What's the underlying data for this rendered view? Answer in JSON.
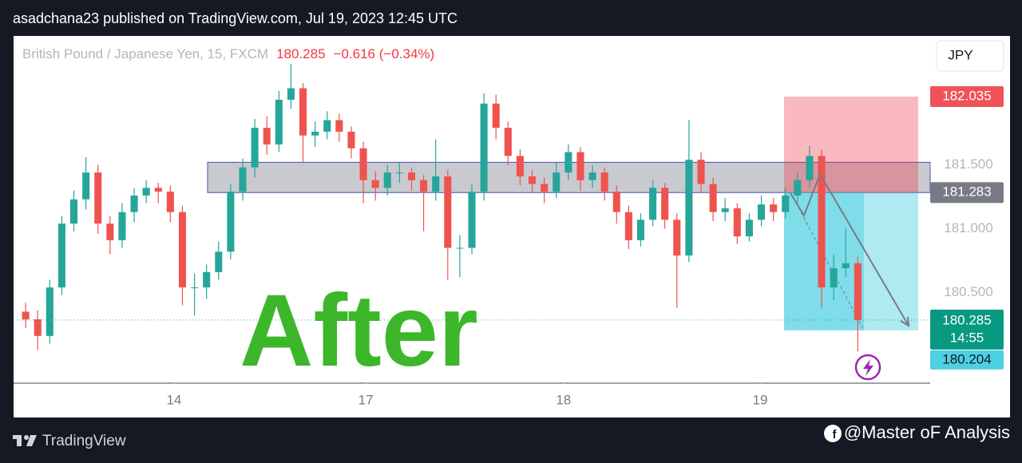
{
  "header": {
    "published": "asadchana23 published on TradingView.com, Jul 19, 2023 12:45 UTC"
  },
  "chart_data": {
    "type": "candlestick",
    "symbol": "British Pound / Japanese Yen, 15, FXCM",
    "change": "−0.616 (−0.34%)",
    "currency": "JPY",
    "annotation": "After",
    "countdown": "14:55",
    "up_color": "#26a69a",
    "down_color": "#ef5350",
    "x": [
      1,
      2,
      3,
      4,
      5,
      6,
      7,
      8,
      9,
      10,
      11,
      12,
      13,
      14,
      15,
      16,
      17,
      18,
      19,
      20,
      21,
      22,
      23,
      24,
      25,
      26,
      27,
      28,
      29,
      30,
      31,
      32,
      33,
      34,
      35,
      36,
      37,
      38,
      39,
      40,
      41,
      42,
      43,
      44,
      45,
      46,
      47,
      48,
      49,
      50,
      51,
      52,
      53,
      54,
      55,
      56,
      57,
      58,
      59,
      60,
      61,
      62,
      63,
      64,
      65,
      66,
      67,
      68,
      69,
      70
    ],
    "open": [
      180.35,
      180.29,
      180.16,
      180.54,
      181.04,
      181.23,
      181.44,
      181.04,
      180.91,
      181.13,
      181.26,
      181.32,
      181.29,
      181.13,
      180.54,
      180.54,
      180.66,
      180.82,
      181.29,
      181.48,
      181.79,
      181.66,
      182.01,
      182.1,
      181.73,
      181.76,
      181.85,
      181.76,
      181.63,
      181.38,
      181.32,
      181.44,
      181.44,
      181.38,
      181.29,
      181.41,
      180.85,
      180.85,
      181.29,
      181.98,
      181.79,
      181.57,
      181.41,
      181.35,
      181.29,
      181.44,
      181.6,
      181.38,
      181.44,
      181.29,
      181.13,
      180.91,
      181.07,
      181.32,
      181.07,
      180.79,
      181.54,
      181.35,
      181.13,
      181.16,
      180.94,
      181.07,
      181.19,
      181.13,
      181.26,
      181.38,
      181.57,
      180.54,
      180.69,
      180.73
    ],
    "high": [
      180.42,
      180.36,
      180.6,
      181.1,
      181.3,
      181.56,
      181.5,
      181.1,
      181.2,
      181.32,
      181.38,
      181.36,
      181.34,
      181.18,
      180.65,
      180.72,
      180.9,
      181.35,
      181.55,
      181.86,
      181.88,
      182.08,
      182.29,
      182.14,
      181.84,
      181.92,
      181.9,
      181.8,
      181.68,
      181.45,
      181.5,
      181.52,
      181.48,
      181.42,
      181.7,
      181.46,
      180.95,
      181.35,
      182.06,
      182.05,
      181.84,
      181.62,
      181.46,
      181.4,
      181.52,
      181.66,
      181.64,
      181.5,
      181.48,
      181.34,
      181.18,
      181.12,
      181.38,
      181.36,
      181.12,
      181.85,
      181.6,
      181.4,
      181.24,
      181.2,
      181.12,
      181.26,
      181.24,
      181.32,
      181.44,
      181.65,
      181.62,
      180.8,
      181.0,
      180.78
    ],
    "low": [
      180.22,
      180.05,
      180.1,
      180.48,
      180.98,
      181.15,
      180.96,
      180.8,
      180.85,
      181.05,
      181.2,
      181.2,
      181.05,
      180.4,
      180.32,
      180.45,
      180.6,
      180.76,
      181.22,
      181.4,
      181.58,
      181.6,
      181.94,
      181.52,
      181.64,
      181.7,
      181.68,
      181.55,
      181.2,
      181.22,
      181.26,
      181.36,
      181.3,
      180.98,
      181.22,
      180.6,
      180.62,
      180.8,
      181.22,
      181.7,
      181.5,
      181.34,
      181.28,
      181.2,
      181.24,
      181.38,
      181.3,
      181.32,
      181.22,
      181.04,
      180.84,
      180.86,
      181.02,
      181.0,
      180.38,
      180.74,
      181.28,
      181.06,
      181.06,
      180.88,
      180.9,
      181.02,
      181.06,
      181.08,
      181.2,
      181.32,
      180.38,
      180.44,
      180.62,
      180.04
    ],
    "close": [
      180.29,
      180.16,
      180.54,
      181.04,
      181.23,
      181.44,
      181.04,
      180.91,
      181.13,
      181.26,
      181.32,
      181.29,
      181.13,
      180.54,
      180.54,
      180.66,
      180.82,
      181.29,
      181.48,
      181.79,
      181.66,
      182.01,
      182.1,
      181.73,
      181.76,
      181.85,
      181.76,
      181.63,
      181.38,
      181.32,
      181.44,
      181.44,
      181.38,
      181.29,
      181.41,
      180.85,
      180.85,
      181.29,
      181.98,
      181.79,
      181.57,
      181.41,
      181.35,
      181.29,
      181.44,
      181.6,
      181.38,
      181.44,
      181.29,
      181.13,
      180.91,
      181.07,
      181.32,
      181.07,
      180.79,
      181.54,
      181.35,
      181.13,
      181.16,
      180.94,
      181.07,
      181.19,
      181.13,
      181.26,
      181.38,
      181.57,
      180.54,
      180.69,
      180.73,
      180.285
    ],
    "xlim": [
      0,
      76
    ],
    "xticks": [
      {
        "value": 13.3,
        "label": "14"
      },
      {
        "value": 29.2,
        "label": "17"
      },
      {
        "value": 45.6,
        "label": "18"
      },
      {
        "value": 61.9,
        "label": "19"
      }
    ],
    "ylim": [
      179.79,
      182.51
    ],
    "yticks": [
      {
        "value": 180.5,
        "label": "180.500"
      },
      {
        "value": 181.0,
        "label": "181.000"
      },
      {
        "value": 181.5,
        "label": "181.500"
      }
    ],
    "zone": [
      181.283,
      181.52
    ],
    "levels": {
      "stop": 182.035,
      "entry": 181.283,
      "target": 180.204
    }
  },
  "footer": {
    "brand": "TradingView",
    "credit": "@Master oF Analysis"
  }
}
